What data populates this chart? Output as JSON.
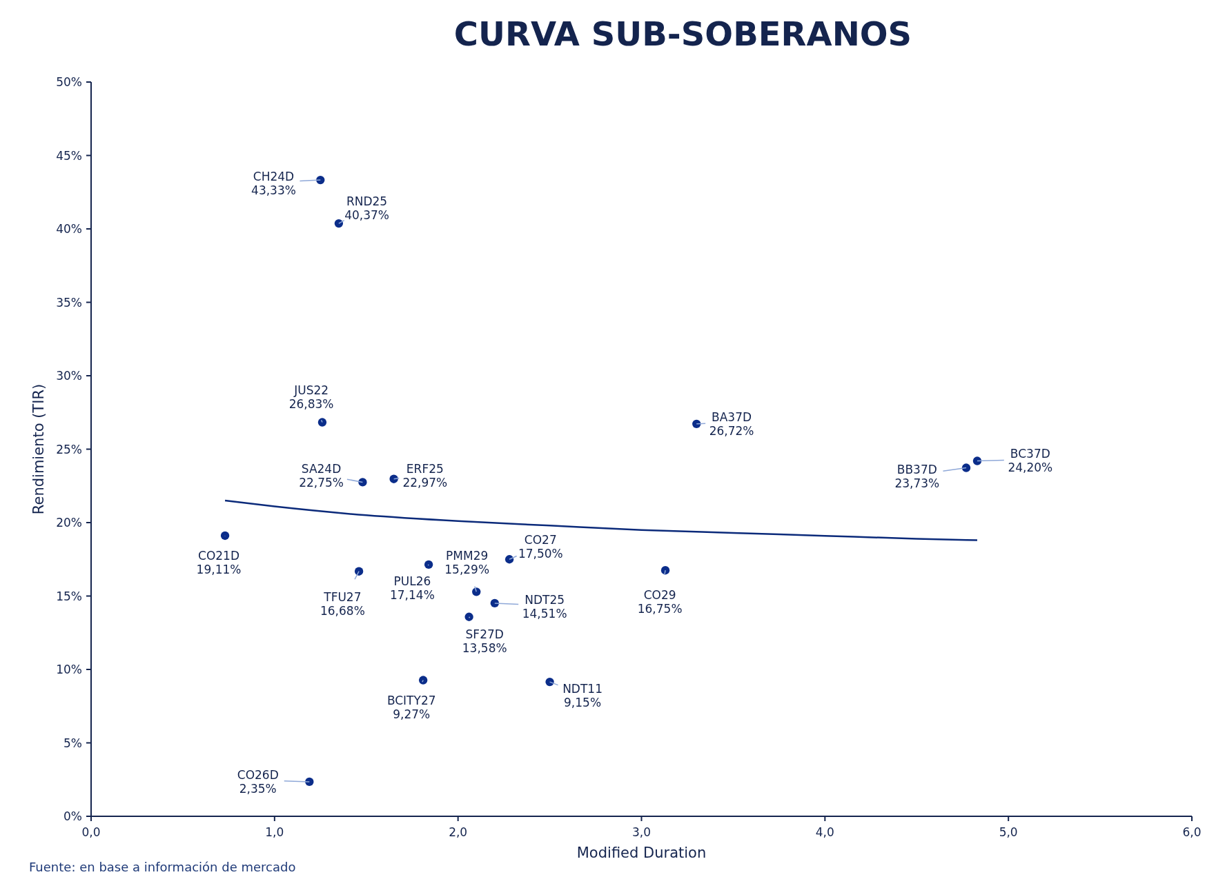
{
  "chart_data": {
    "type": "scatter",
    "title": "CURVA SUB-SOBERANOS",
    "xlabel": "Modified Duration",
    "ylabel": "Rendimiento (TIR)",
    "xlim": [
      0,
      6
    ],
    "xticks": [
      {
        "value": 0,
        "label": "0,0"
      },
      {
        "value": 1,
        "label": "1,0"
      },
      {
        "value": 2,
        "label": "2,0"
      },
      {
        "value": 3,
        "label": "3,0"
      },
      {
        "value": 4,
        "label": "4,0"
      },
      {
        "value": 5,
        "label": "5,0"
      },
      {
        "value": 6,
        "label": "6,0"
      }
    ],
    "ylim": [
      0,
      50
    ],
    "yticks": [
      {
        "value": 0,
        "label": "0%"
      },
      {
        "value": 5,
        "label": "5%"
      },
      {
        "value": 10,
        "label": "10%"
      },
      {
        "value": 15,
        "label": "15%"
      },
      {
        "value": 20,
        "label": "20%"
      },
      {
        "value": 25,
        "label": "25%"
      },
      {
        "value": 30,
        "label": "30%"
      },
      {
        "value": 35,
        "label": "35%"
      },
      {
        "value": 40,
        "label": "40%"
      },
      {
        "value": 45,
        "label": "45%"
      },
      {
        "value": 50,
        "label": "50%"
      }
    ],
    "grid": false,
    "marker": "circle",
    "series": [
      {
        "color": "#0b2d8a",
        "x": [
          1.25,
          1.35,
          1.26,
          3.3,
          4.83,
          4.77,
          1.48,
          1.65,
          0.73,
          1.46,
          1.84,
          2.1,
          2.28,
          2.2,
          2.06,
          3.13,
          1.81,
          2.5,
          1.19
        ],
        "values": [
          43.33,
          40.37,
          26.83,
          26.72,
          24.2,
          23.73,
          22.75,
          22.97,
          19.11,
          16.68,
          17.14,
          15.29,
          17.5,
          14.51,
          13.58,
          16.75,
          9.27,
          9.15,
          2.35
        ],
        "value_labels": [
          "43,33%",
          "40,37%",
          "26,83%",
          "26,72%",
          "24,20%",
          "23,73%",
          "22,75%",
          "22,97%",
          "19,11%",
          "16,68%",
          "17,14%",
          "15,29%",
          "17,50%",
          "14,51%",
          "13,58%",
          "16,75%",
          "9,27%",
          "9,15%",
          "2,35%"
        ]
      },
      {
        "type": "line",
        "marker": "none",
        "color": "#0b2a7a",
        "x": [
          0.73,
          1.0,
          1.5,
          2.0,
          2.5,
          3.0,
          3.5,
          4.0,
          4.5,
          4.83
        ],
        "values": [
          21.5,
          21.1,
          20.5,
          20.1,
          19.8,
          19.5,
          19.3,
          19.1,
          18.9,
          18.8
        ]
      }
    ],
    "annotations": [
      {
        "text": "CH24D",
        "x": 1.25,
        "y": 43.33
      },
      {
        "text": "RND25",
        "x": 1.35,
        "y": 40.37
      },
      {
        "text": "JUS22",
        "x": 1.26,
        "y": 26.83
      },
      {
        "text": "BA37D",
        "x": 3.3,
        "y": 26.72
      },
      {
        "text": "BC37D",
        "x": 4.83,
        "y": 24.2
      },
      {
        "text": "BB37D",
        "x": 4.77,
        "y": 23.73
      },
      {
        "text": "SA24D",
        "x": 1.48,
        "y": 22.75
      },
      {
        "text": "ERF25",
        "x": 1.65,
        "y": 22.97
      },
      {
        "text": "CO21D",
        "x": 0.73,
        "y": 19.11
      },
      {
        "text": "TFU27",
        "x": 1.46,
        "y": 16.68
      },
      {
        "text": "PUL26",
        "x": 1.84,
        "y": 17.14
      },
      {
        "text": "PMM29",
        "x": 2.1,
        "y": 15.29
      },
      {
        "text": "CO27",
        "x": 2.28,
        "y": 17.5
      },
      {
        "text": "NDT25",
        "x": 2.2,
        "y": 14.51
      },
      {
        "text": "SF27D",
        "x": 2.06,
        "y": 13.58
      },
      {
        "text": "CO29",
        "x": 3.13,
        "y": 16.75
      },
      {
        "text": "BCITY27",
        "x": 1.81,
        "y": 9.27
      },
      {
        "text": "NDT11",
        "x": 2.5,
        "y": 9.15
      },
      {
        "text": "CO26D",
        "x": 1.19,
        "y": 2.35
      },
      "Fuente: en base a información de mercado"
    ]
  }
}
